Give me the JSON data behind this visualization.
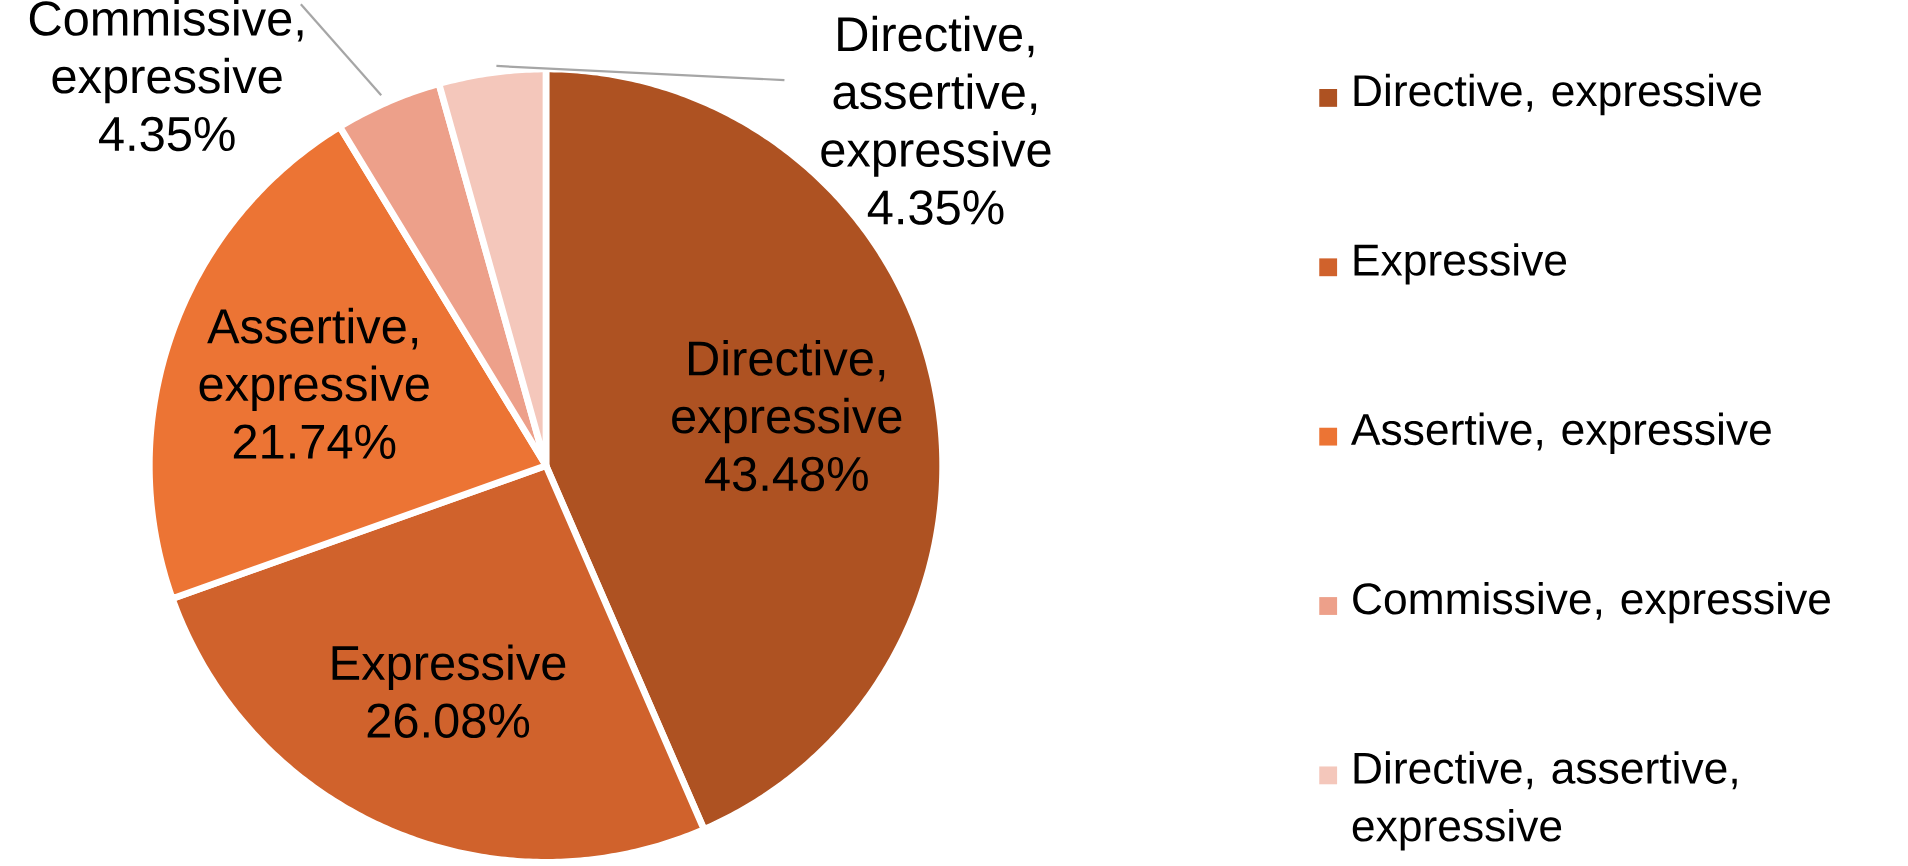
{
  "chart_data": {
    "type": "pie",
    "categories": [
      "Directive, expressive",
      "Expressive",
      "Assertive, expressive",
      "Commissive, expressive",
      "Directive, assertive, expressive"
    ],
    "values": [
      43.48,
      26.08,
      21.74,
      4.35,
      4.35
    ],
    "colors": [
      "#ae5222",
      "#d0622c",
      "#ec7434",
      "#eda08a",
      "#f4c7bb"
    ],
    "value_labels": [
      "43.48%",
      "26.08%",
      "21.74%",
      "4.35%",
      "4.35%"
    ],
    "legend": "right"
  }
}
